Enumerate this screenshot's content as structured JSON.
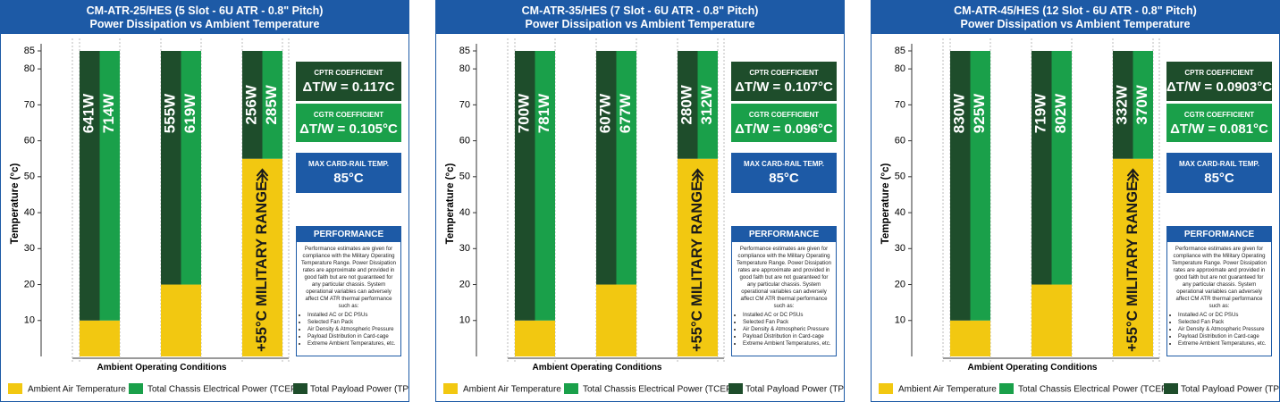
{
  "chart_data": [
    {
      "type": "bar",
      "title": "CM-ATR-25/HES (5 Slot - 6U ATR - 0.8\" Pitch)",
      "subtitle": "Power Dissipation vs Ambient Temperature",
      "y_label": "Temperature (°c)",
      "x_label": "Ambient Operating Conditions",
      "ylim": [
        0,
        85
      ],
      "yticks": [
        10,
        20,
        30,
        40,
        50,
        60,
        70,
        80,
        85
      ],
      "grid": false,
      "categories": [
        null,
        null,
        null
      ],
      "series": [
        {
          "name": "Ambient Air Temperature",
          "color": "#f2c811",
          "values": [
            10,
            20,
            55
          ]
        },
        {
          "name": "Total Chassis Electrical Power (TCEP)",
          "color": "#1aa04a",
          "values": [
            75,
            65,
            30
          ],
          "power_labels": [
            "714W",
            "619W",
            "285W"
          ]
        },
        {
          "name": "Total Payload Power (TPP)",
          "color": "#1e4d2b",
          "values": [
            75,
            65,
            30
          ],
          "power_labels": [
            "641W",
            "555W",
            "256W"
          ]
        }
      ],
      "military_range": "+55°C MILITARY RANGE",
      "cptr": {
        "label": "CPTR COEFFICIENT",
        "value": "ΔT/W = 0.117C"
      },
      "cgtr": {
        "label": "CGTR COEFFICIENT",
        "value": "ΔT/W = 0.105°C"
      },
      "max_temp": {
        "label": "MAX CARD-RAIL TEMP.",
        "value": "85°C"
      },
      "performance": {
        "title": "PERFORMANCE",
        "text": "Performance estimates are given for compliance with the Military Operating Temperature Range. Power Dissipation rates are approximate and provided in good faith but are not guaranteed for any particular chassis. System operational variables can adversely affect CM ATR thermal performance such as:",
        "bullets": [
          "Installed AC or DC PSUs",
          "Selected Fan Pack",
          "Air Density & Atmospheric Pressure",
          "Payload Distribution in Card-cage",
          "Extreme Ambient Temperatures, etc."
        ]
      }
    },
    {
      "type": "bar",
      "title": "CM-ATR-35/HES (7 Slot - 6U ATR - 0.8\" Pitch)",
      "subtitle": "Power Dissipation vs Ambient Temperature",
      "y_label": "Temperature (°c)",
      "x_label": "Ambient Operating Conditions",
      "ylim": [
        0,
        85
      ],
      "yticks": [
        10,
        20,
        30,
        40,
        50,
        60,
        70,
        80,
        85
      ],
      "grid": false,
      "categories": [
        null,
        null,
        null
      ],
      "series": [
        {
          "name": "Ambient Air Temperature",
          "color": "#f2c811",
          "values": [
            10,
            20,
            55
          ]
        },
        {
          "name": "Total Chassis Electrical Power (TCEP)",
          "color": "#1aa04a",
          "values": [
            75,
            65,
            30
          ],
          "power_labels": [
            "781W",
            "677W",
            "312W"
          ]
        },
        {
          "name": "Total Payload Power (TPP)",
          "color": "#1e4d2b",
          "values": [
            75,
            65,
            30
          ],
          "power_labels": [
            "700W",
            "607W",
            "280W"
          ]
        }
      ],
      "military_range": "+55°C MILITARY RANGE",
      "cptr": {
        "label": "CPTR COEFFICIENT",
        "value": "ΔT/W = 0.107°C"
      },
      "cgtr": {
        "label": "CGTR COEFFICIENT",
        "value": "ΔT/W = 0.096°C"
      },
      "max_temp": {
        "label": "MAX CARD-RAIL TEMP.",
        "value": "85°C"
      },
      "performance": {
        "title": "PERFORMANCE",
        "text": "Performance estimates are given for compliance with the Military Operating Temperature Range. Power Dissipation rates are approximate and provided in good faith but are not guaranteed for any particular chassis. System operational variables can adversely affect CM ATR thermal performance such as:",
        "bullets": [
          "Installed AC or DC PSUs",
          "Selected Fan Pack",
          "Air Density & Atmospheric Pressure",
          "Payload Distribution in Card-cage",
          "Extreme Ambient Temperatures, etc."
        ]
      }
    },
    {
      "type": "bar",
      "title": "CM-ATR-45/HES (12 Slot - 6U ATR - 0.8\" Pitch)",
      "subtitle": "Power Dissipation vs Ambient Temperature",
      "y_label": "Temperature (°c)",
      "x_label": "Ambient Operating Conditions",
      "ylim": [
        0,
        85
      ],
      "yticks": [
        10,
        20,
        30,
        40,
        50,
        60,
        70,
        80,
        85
      ],
      "grid": false,
      "categories": [
        null,
        null,
        null
      ],
      "series": [
        {
          "name": "Ambient Air Temperature",
          "color": "#f2c811",
          "values": [
            10,
            20,
            55
          ]
        },
        {
          "name": "Total Chassis Electrical Power (TCEP)",
          "color": "#1aa04a",
          "values": [
            75,
            65,
            30
          ],
          "power_labels": [
            "925W",
            "802W",
            "370W"
          ]
        },
        {
          "name": "Total Payload Power (TPP)",
          "color": "#1e4d2b",
          "values": [
            75,
            65,
            30
          ],
          "power_labels": [
            "830W",
            "719W",
            "332W"
          ]
        }
      ],
      "military_range": "+55°C MILITARY RANGE",
      "cptr": {
        "label": "CPTR COEFFICIENT",
        "value": "ΔT/W = 0.0903°C"
      },
      "cgtr": {
        "label": "CGTR COEFFICIENT",
        "value": "ΔT/W = 0.081°C"
      },
      "max_temp": {
        "label": "MAX CARD-RAIL TEMP.",
        "value": "85°C"
      },
      "performance": {
        "title": "PERFORMANCE",
        "text": "Performance estimates are given for compliance with the Military Operating Temperature Range. Power Dissipation rates are approximate and provided in good faith but are not guaranteed for any particular chassis. System operational variables can adversely affect CM ATR thermal performance such as:",
        "bullets": [
          "Installed AC or DC PSUs",
          "Selected Fan Pack",
          "Air Density & Atmospheric Pressure",
          "Payload Distribution in Card-cage",
          "Extreme Ambient Temperatures, etc."
        ]
      }
    }
  ]
}
